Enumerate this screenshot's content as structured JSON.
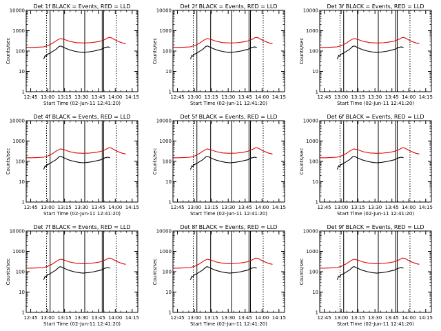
{
  "page": {
    "background": "#ffffff"
  },
  "colors": {
    "events": "#000000",
    "lld": "#dd0000",
    "axis": "#000000"
  },
  "shared": {
    "xlabel": "Start Time (02-Jun-11 12:41:20)",
    "ylabel": "Counts/sec",
    "x_tick_labels": [
      "12:45",
      "13:00",
      "13:15",
      "13:30",
      "13:45",
      "14:00",
      "14:15"
    ],
    "x_tick_minutes": [
      3.67,
      18.67,
      33.67,
      48.67,
      63.67,
      78.67,
      93.67
    ],
    "x_range_minutes": [
      -0.33,
      98.67
    ],
    "y_tick_labels": [
      "1",
      "10",
      "100",
      "1000",
      "10000"
    ],
    "y_range": [
      1,
      10000
    ],
    "y_scale": "log",
    "marker_lines_solid_minutes": [
      20.9,
      33.1,
      51.6,
      67.1,
      68.4
    ],
    "marker_lines_dotted_minutes": [
      17.7,
      79.7
    ]
  },
  "chart_data": [
    {
      "type": "line",
      "title": "Det 1f  BLACK = Events, RED = LLD",
      "series": [
        {
          "name": "BLACK = Events",
          "color": "#000000",
          "x": [
            15.2,
            16.5,
            17.5,
            18.5,
            20,
            23,
            26,
            29,
            30.5,
            32,
            35,
            38,
            42,
            46,
            50,
            55,
            60,
            63,
            66,
            69,
            72,
            74
          ],
          "y": [
            40,
            60,
            55,
            70,
            75,
            95,
            120,
            170,
            175,
            160,
            135,
            115,
            100,
            90,
            85,
            90,
            100,
            110,
            120,
            145,
            160,
            150
          ]
        },
        {
          "name": "RED = LLD",
          "color": "#dd0000",
          "x": [
            -0.3,
            5,
            10,
            15,
            19,
            23,
            27,
            30,
            33,
            38,
            44,
            50,
            56,
            62,
            66,
            70,
            73,
            75,
            80,
            85,
            88
          ],
          "y": [
            150,
            150,
            155,
            160,
            185,
            240,
            340,
            410,
            380,
            300,
            260,
            250,
            255,
            280,
            310,
            380,
            470,
            450,
            320,
            250,
            230
          ]
        }
      ]
    },
    {
      "type": "line",
      "title": "Det 2f  BLACK = Events, RED = LLD",
      "series": [
        {
          "name": "BLACK = Events",
          "color": "#000000",
          "x": [
            15.2,
            16.5,
            17.5,
            18.5,
            20,
            23,
            26,
            29,
            30.5,
            32,
            35,
            38,
            42,
            46,
            50,
            55,
            60,
            63,
            66,
            69,
            72,
            74
          ],
          "y": [
            40,
            60,
            55,
            70,
            75,
            95,
            120,
            170,
            175,
            160,
            135,
            115,
            100,
            90,
            85,
            90,
            100,
            110,
            120,
            145,
            160,
            150
          ]
        },
        {
          "name": "RED = LLD",
          "color": "#dd0000",
          "x": [
            -0.3,
            5,
            10,
            15,
            19,
            23,
            27,
            30,
            33,
            38,
            44,
            50,
            56,
            62,
            66,
            70,
            73,
            75,
            80,
            85,
            88
          ],
          "y": [
            150,
            150,
            155,
            160,
            185,
            240,
            340,
            410,
            380,
            300,
            260,
            250,
            255,
            280,
            310,
            380,
            470,
            450,
            320,
            250,
            230
          ]
        }
      ]
    },
    {
      "type": "line",
      "title": "Det 3f  BLACK = Events, RED = LLD",
      "series": [
        {
          "name": "BLACK = Events",
          "color": "#000000",
          "x": [
            15.2,
            16.5,
            17.5,
            18.5,
            20,
            23,
            26,
            29,
            30.5,
            32,
            35,
            38,
            42,
            46,
            50,
            55,
            60,
            63,
            66,
            69,
            72,
            74
          ],
          "y": [
            40,
            60,
            55,
            70,
            75,
            95,
            120,
            170,
            175,
            160,
            135,
            115,
            100,
            90,
            85,
            90,
            100,
            110,
            120,
            145,
            160,
            150
          ]
        },
        {
          "name": "RED = LLD",
          "color": "#dd0000",
          "x": [
            -0.3,
            5,
            10,
            15,
            19,
            23,
            27,
            30,
            33,
            38,
            44,
            50,
            56,
            62,
            66,
            70,
            73,
            75,
            80,
            85,
            88
          ],
          "y": [
            150,
            150,
            155,
            160,
            185,
            240,
            340,
            410,
            380,
            300,
            260,
            250,
            255,
            280,
            310,
            380,
            470,
            450,
            320,
            250,
            230
          ]
        }
      ]
    },
    {
      "type": "line",
      "title": "Det 4f  BLACK = Events, RED = LLD",
      "series": [
        {
          "name": "BLACK = Events",
          "color": "#000000",
          "x": [
            15.2,
            16.5,
            17.5,
            18.5,
            20,
            23,
            26,
            29,
            30.5,
            32,
            35,
            38,
            42,
            46,
            50,
            55,
            60,
            63,
            66,
            69,
            72,
            74
          ],
          "y": [
            40,
            60,
            55,
            70,
            75,
            95,
            120,
            170,
            175,
            160,
            135,
            115,
            100,
            90,
            85,
            90,
            100,
            110,
            120,
            145,
            160,
            150
          ]
        },
        {
          "name": "RED = LLD",
          "color": "#dd0000",
          "x": [
            -0.3,
            5,
            10,
            15,
            19,
            23,
            27,
            30,
            33,
            38,
            44,
            50,
            56,
            62,
            66,
            70,
            73,
            75,
            80,
            85,
            88
          ],
          "y": [
            150,
            150,
            155,
            160,
            185,
            240,
            340,
            410,
            380,
            300,
            260,
            250,
            255,
            280,
            310,
            380,
            470,
            450,
            320,
            250,
            230
          ]
        }
      ]
    },
    {
      "type": "line",
      "title": "Det 5f  BLACK = Events, RED = LLD",
      "series": [
        {
          "name": "BLACK = Events",
          "color": "#000000",
          "x": [
            15.2,
            16.5,
            17.5,
            18.5,
            20,
            23,
            26,
            29,
            30.5,
            32,
            35,
            38,
            42,
            46,
            50,
            55,
            60,
            63,
            66,
            69,
            72,
            74
          ],
          "y": [
            40,
            60,
            55,
            70,
            75,
            95,
            120,
            170,
            175,
            160,
            135,
            115,
            100,
            90,
            85,
            90,
            100,
            110,
            120,
            145,
            160,
            150
          ]
        },
        {
          "name": "RED = LLD",
          "color": "#dd0000",
          "x": [
            -0.3,
            5,
            10,
            15,
            19,
            23,
            27,
            30,
            33,
            38,
            44,
            50,
            56,
            62,
            66,
            70,
            73,
            75,
            80,
            85,
            88
          ],
          "y": [
            150,
            150,
            155,
            160,
            185,
            240,
            340,
            410,
            380,
            300,
            260,
            250,
            255,
            280,
            310,
            380,
            470,
            450,
            320,
            250,
            230
          ]
        }
      ]
    },
    {
      "type": "line",
      "title": "Det 6f  BLACK = Events, RED = LLD",
      "series": [
        {
          "name": "BLACK = Events",
          "color": "#000000",
          "x": [
            15.2,
            16.5,
            17.5,
            18.5,
            20,
            23,
            26,
            29,
            30.5,
            32,
            35,
            38,
            42,
            46,
            50,
            55,
            60,
            63,
            66,
            69,
            72,
            74
          ],
          "y": [
            40,
            60,
            55,
            70,
            75,
            95,
            120,
            170,
            175,
            160,
            135,
            115,
            100,
            90,
            85,
            90,
            100,
            110,
            120,
            145,
            160,
            150
          ]
        },
        {
          "name": "RED = LLD",
          "color": "#dd0000",
          "x": [
            -0.3,
            5,
            10,
            15,
            19,
            23,
            27,
            30,
            33,
            38,
            44,
            50,
            56,
            62,
            66,
            70,
            73,
            75,
            80,
            85,
            88
          ],
          "y": [
            150,
            150,
            155,
            160,
            185,
            240,
            340,
            410,
            380,
            300,
            260,
            250,
            255,
            280,
            310,
            380,
            470,
            450,
            320,
            250,
            230
          ]
        }
      ]
    },
    {
      "type": "line",
      "title": "Det 7f  BLACK = Events, RED = LLD",
      "series": [
        {
          "name": "BLACK = Events",
          "color": "#000000",
          "x": [
            15.2,
            16.5,
            17.5,
            18.5,
            20,
            23,
            26,
            29,
            30.5,
            32,
            35,
            38,
            42,
            46,
            50,
            55,
            60,
            63,
            66,
            69,
            72,
            74
          ],
          "y": [
            40,
            60,
            55,
            70,
            75,
            95,
            120,
            170,
            175,
            160,
            135,
            115,
            100,
            90,
            85,
            90,
            100,
            110,
            120,
            145,
            160,
            150
          ]
        },
        {
          "name": "RED = LLD",
          "color": "#dd0000",
          "x": [
            -0.3,
            5,
            10,
            15,
            19,
            23,
            27,
            30,
            33,
            38,
            44,
            50,
            56,
            62,
            66,
            70,
            73,
            75,
            80,
            85,
            88
          ],
          "y": [
            150,
            150,
            155,
            160,
            185,
            240,
            340,
            410,
            380,
            300,
            260,
            250,
            255,
            280,
            310,
            380,
            470,
            450,
            320,
            250,
            230
          ]
        }
      ]
    },
    {
      "type": "line",
      "title": "Det 8f  BLACK = Events, RED = LLD",
      "series": [
        {
          "name": "BLACK = Events",
          "color": "#000000",
          "x": [
            15.2,
            16.5,
            17.5,
            18.5,
            20,
            23,
            26,
            29,
            30.5,
            32,
            35,
            38,
            42,
            46,
            50,
            55,
            60,
            63,
            66,
            69,
            72,
            74
          ],
          "y": [
            40,
            60,
            55,
            70,
            75,
            95,
            120,
            170,
            175,
            160,
            135,
            115,
            100,
            90,
            85,
            90,
            100,
            110,
            120,
            145,
            160,
            150
          ]
        },
        {
          "name": "RED = LLD",
          "color": "#dd0000",
          "x": [
            -0.3,
            5,
            10,
            15,
            19,
            23,
            27,
            30,
            33,
            38,
            44,
            50,
            56,
            62,
            66,
            70,
            73,
            75,
            80,
            85,
            88
          ],
          "y": [
            150,
            150,
            155,
            160,
            185,
            240,
            340,
            410,
            380,
            300,
            260,
            250,
            255,
            280,
            310,
            380,
            470,
            450,
            320,
            250,
            230
          ]
        }
      ]
    },
    {
      "type": "line",
      "title": "Det 9f  BLACK = Events, RED = LLD",
      "series": [
        {
          "name": "BLACK = Events",
          "color": "#000000",
          "x": [
            15.2,
            16.5,
            17.5,
            18.5,
            20,
            23,
            26,
            29,
            30.5,
            32,
            35,
            38,
            42,
            46,
            50,
            55,
            60,
            63,
            66,
            69,
            72,
            74
          ],
          "y": [
            40,
            60,
            55,
            70,
            75,
            95,
            120,
            170,
            175,
            160,
            135,
            115,
            100,
            90,
            85,
            90,
            100,
            110,
            120,
            145,
            160,
            150
          ]
        },
        {
          "name": "RED = LLD",
          "color": "#dd0000",
          "x": [
            -0.3,
            5,
            10,
            15,
            19,
            23,
            27,
            30,
            33,
            38,
            44,
            50,
            56,
            62,
            66,
            70,
            73,
            75,
            80,
            85,
            88
          ],
          "y": [
            150,
            150,
            155,
            160,
            185,
            240,
            340,
            410,
            380,
            300,
            260,
            250,
            255,
            280,
            310,
            380,
            470,
            450,
            320,
            250,
            230
          ]
        }
      ]
    }
  ]
}
